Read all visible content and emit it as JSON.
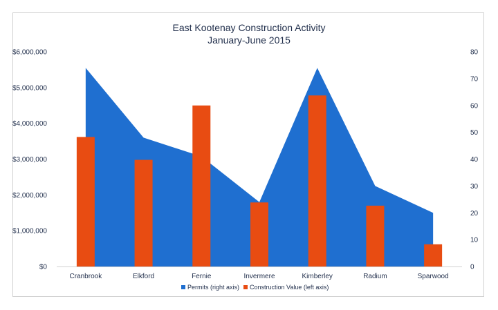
{
  "chart_data": {
    "type": "bar",
    "title": "East Kootenay Construction Activity",
    "subtitle": "January-June 2015",
    "categories": [
      "Cranbrook",
      "Elkford",
      "Fernie",
      "Invermere",
      "Kimberley",
      "Radium",
      "Sparwood"
    ],
    "series": [
      {
        "name": "Permits (right axis)",
        "type": "area",
        "axis": "right",
        "color": "#1f6fd0",
        "values": [
          74,
          48,
          41,
          24,
          74,
          30,
          20
        ]
      },
      {
        "name": "Construction Value (left axis)",
        "type": "bar",
        "axis": "left",
        "color": "#e84c12",
        "values": [
          3620000,
          2980000,
          4500000,
          1790000,
          4780000,
          1700000,
          620000
        ]
      }
    ],
    "left_axis": {
      "ylim": [
        0,
        6000000
      ],
      "ticks": [
        "$0",
        "$1,000,000",
        "$2,000,000",
        "$3,000,000",
        "$4,000,000",
        "$5,000,000",
        "$6,000,000"
      ]
    },
    "right_axis": {
      "ylim": [
        0,
        80
      ],
      "ticks": [
        "0",
        "10",
        "20",
        "30",
        "40",
        "50",
        "60",
        "70",
        "80"
      ]
    },
    "legend": "bottom",
    "grid": false
  }
}
